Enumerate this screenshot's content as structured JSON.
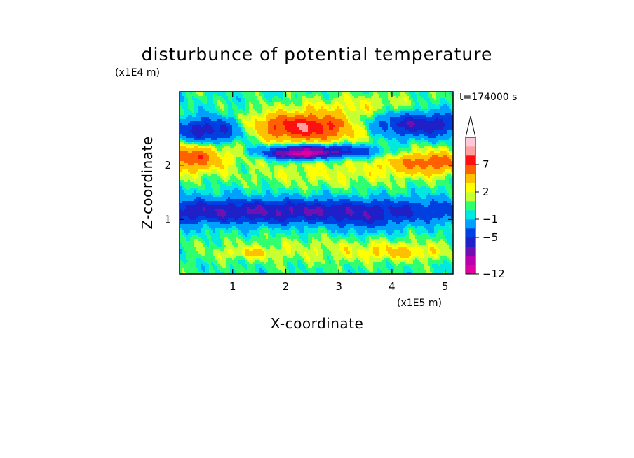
{
  "chart_data": {
    "type": "heatmap",
    "title": "disturbunce of potential temperature",
    "xlabel": "X-coordinate",
    "ylabel": "Z-coordinate",
    "x_unit": "(x1E5 m)",
    "y_unit": "(x1E4 m)",
    "time_label": "t=174000 s",
    "xlim": [
      0,
      5.15
    ],
    "ylim": [
      0,
      3.35
    ],
    "x_ticks": [
      1,
      2,
      3,
      4,
      5
    ],
    "y_ticks": [
      1,
      2
    ],
    "colorbar": {
      "levels": [
        -12,
        -11,
        -9,
        -7,
        -5,
        -3,
        -1,
        0,
        1,
        2,
        3,
        5,
        7,
        9,
        11
      ],
      "labels": [
        "-12",
        "-5",
        "-1",
        "2",
        "7"
      ],
      "colors": [
        "#e000a0",
        "#b800b0",
        "#7010b0",
        "#2020c8",
        "#0040e0",
        "#00a0ff",
        "#00e8e0",
        "#30ff70",
        "#c8ff30",
        "#ffff00",
        "#ffc000",
        "#ff6000",
        "#ff1010",
        "#ffa0a0",
        "#ffc8d8"
      ],
      "extend": "max"
    },
    "features": [
      {
        "x": 1.7,
        "z": 1.15,
        "sx": 3.2,
        "sz": 0.17,
        "amp": -7
      },
      {
        "x": 3.5,
        "z": 0.92,
        "sx": 0.35,
        "sz": 0.14,
        "amp": -2
      },
      {
        "x": 0.6,
        "z": 2.65,
        "sx": 0.5,
        "sz": 0.17,
        "amp": -7
      },
      {
        "x": 4.4,
        "z": 2.75,
        "sx": 0.8,
        "sz": 0.17,
        "amp": -7
      },
      {
        "x": 2.4,
        "z": 2.7,
        "sx": 0.85,
        "sz": 0.2,
        "amp": 9
      },
      {
        "x": 2.55,
        "z": 2.25,
        "sx": 0.75,
        "sz": 0.08,
        "amp": -9
      },
      {
        "x": 0.15,
        "z": 2.1,
        "sx": 0.5,
        "sz": 0.18,
        "amp": 6
      },
      {
        "x": 4.75,
        "z": 2.05,
        "sx": 0.6,
        "sz": 0.16,
        "amp": 6
      },
      {
        "x": 2.2,
        "z": 2.2,
        "sx": 0.3,
        "sz": 0.07,
        "amp": -6
      },
      {
        "x": 2.8,
        "z": 1.85,
        "sx": 1.1,
        "sz": 0.22,
        "amp": 2
      },
      {
        "x": 2.9,
        "z": 0.45,
        "sx": 1.6,
        "sz": 0.2,
        "amp": 1.5
      },
      {
        "x": 1.3,
        "z": 0.38,
        "sx": 0.4,
        "sz": 0.08,
        "amp": 2
      },
      {
        "x": 4.2,
        "z": 0.4,
        "sx": 0.6,
        "sz": 0.1,
        "amp": 2.5
      },
      {
        "x": 0.6,
        "z": 2.25,
        "sx": 1.0,
        "sz": 0.1,
        "amp": 1.5
      },
      {
        "x": 3.6,
        "z": 3.1,
        "sx": 0.8,
        "sz": 0.15,
        "amp": 2
      }
    ]
  }
}
